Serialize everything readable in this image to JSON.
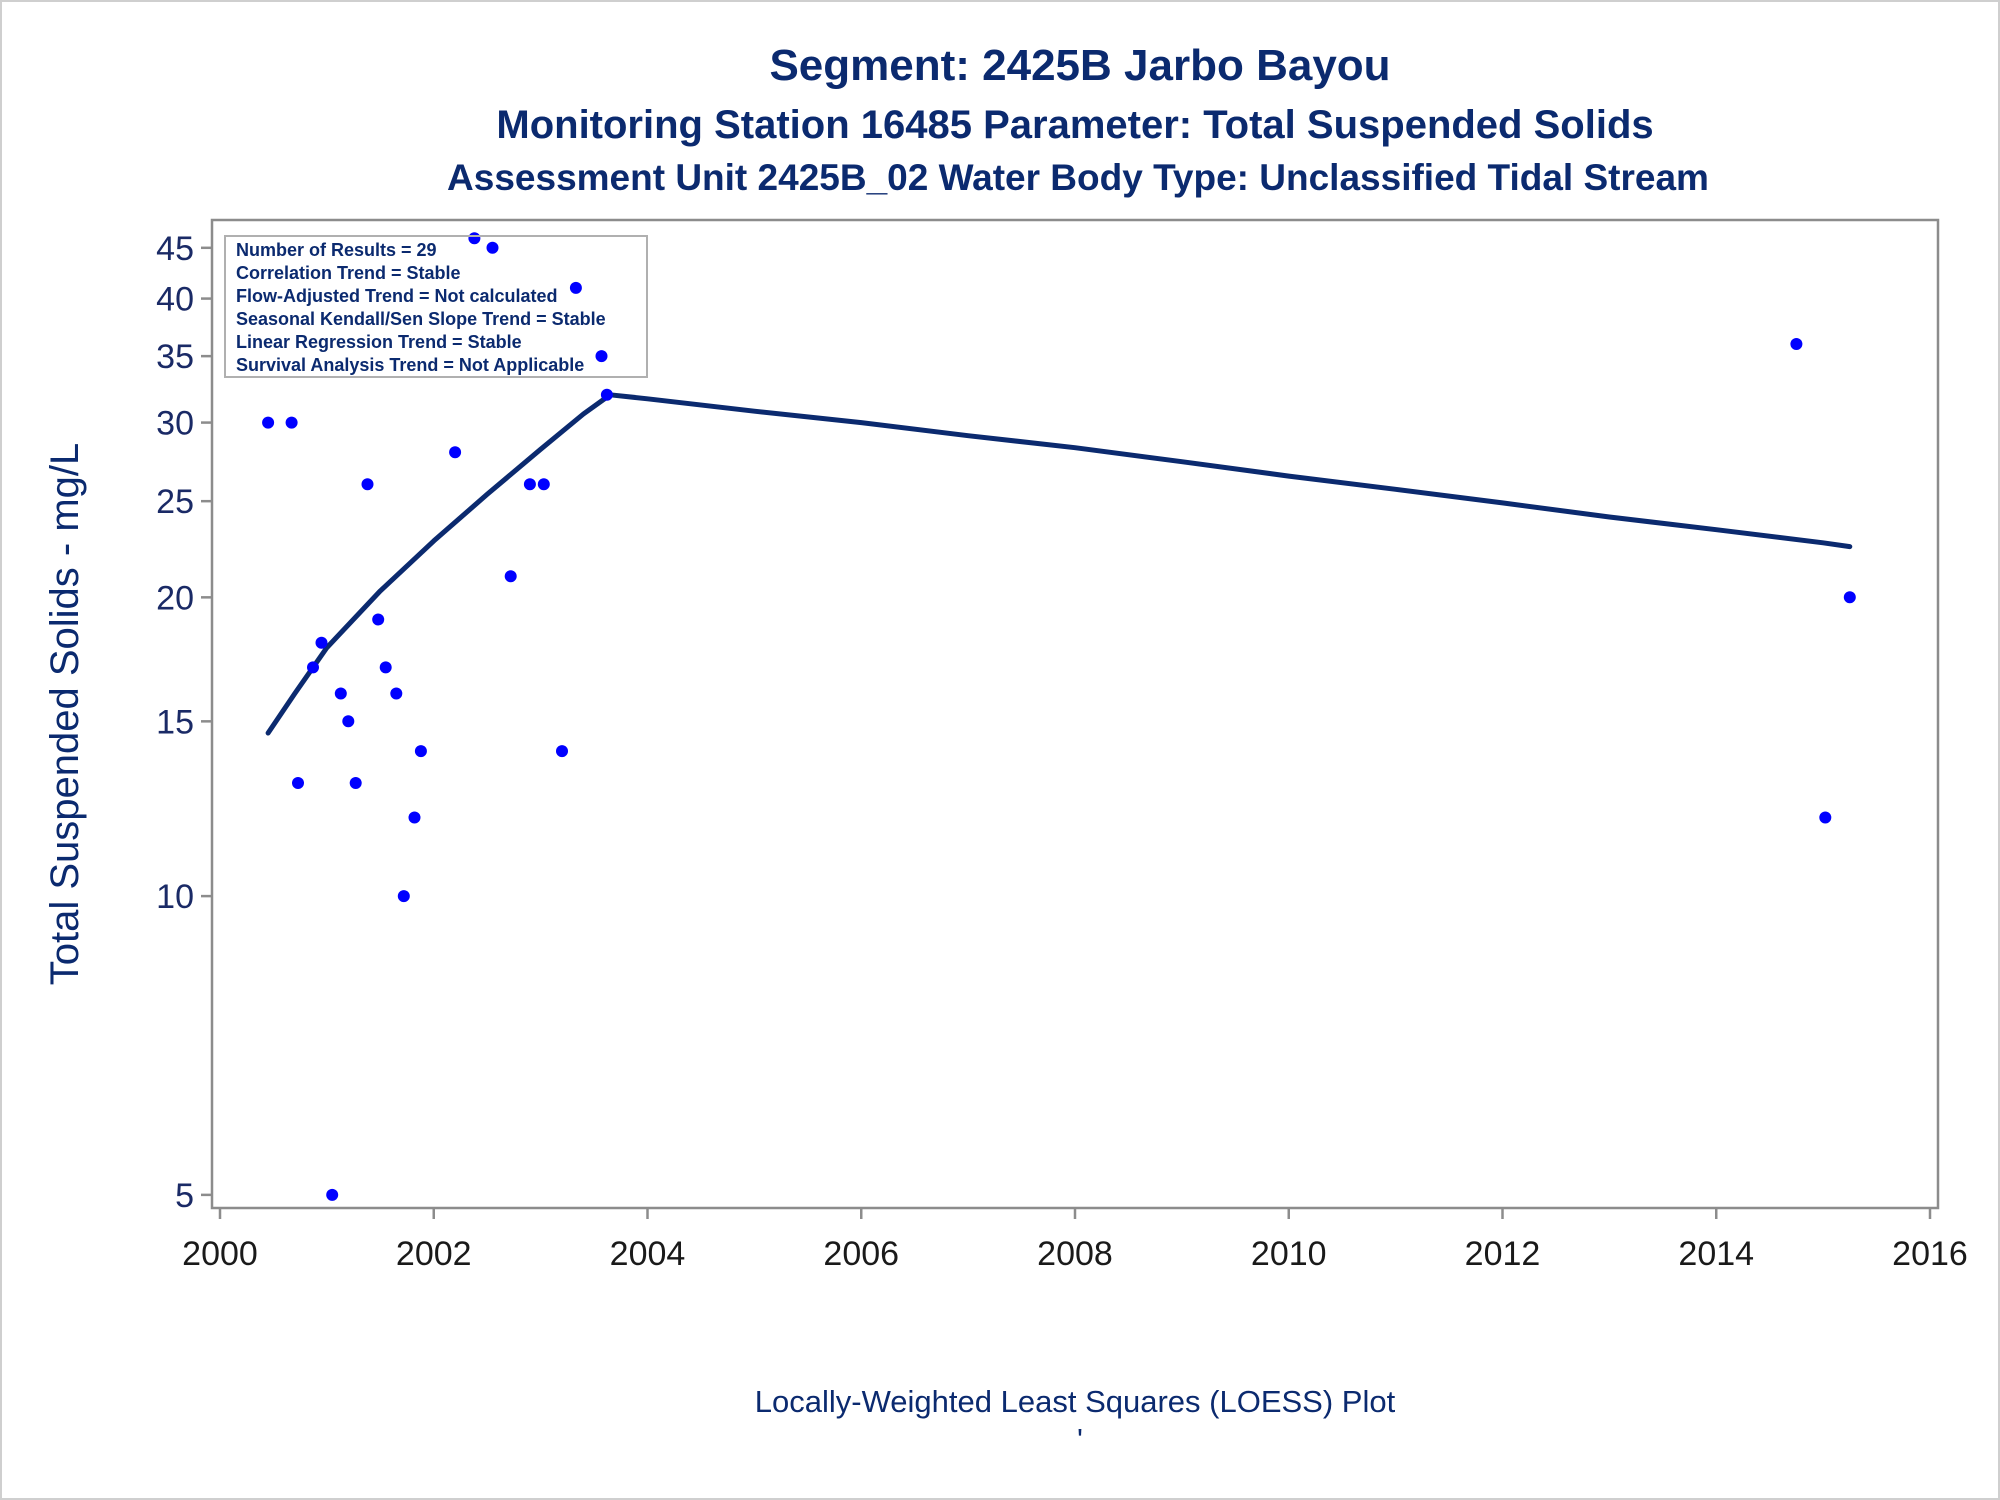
{
  "colors": {
    "title": "#0b2a6f",
    "axis": "#8c8c8c",
    "points": "#0000ff",
    "loess_line": "#0b2a6f",
    "inset_border": "#b0b0b0"
  },
  "chart_data": {
    "type": "scatter",
    "title": "Segment: 2425B  Jarbo Bayou",
    "subtitle": "Monitoring Station 16485 Parameter: Total Suspended Solids",
    "subtitle2": "Assessment Unit 2425B_02   Water Body Type: Unclassified Tidal Stream",
    "ylabel": "Total Suspended Solids - mg/L",
    "xlabel": "",
    "footnote": "Locally-Weighted Least Squares (LOESS) Plot",
    "footnote_mark": "'",
    "x_scale": "linear",
    "y_scale": "log",
    "xlim": [
      2000,
      2016
    ],
    "ylim": [
      4.85,
      48
    ],
    "x_ticks": [
      2000,
      2002,
      2004,
      2006,
      2008,
      2010,
      2012,
      2014,
      2016
    ],
    "y_ticks": [
      5,
      10,
      15,
      20,
      25,
      30,
      35,
      40,
      45
    ],
    "grid": false,
    "legend_position": "top-left",
    "inset_text": [
      "Number of Results = 29",
      "Correlation Trend = Stable",
      "Flow-Adjusted Trend = Not calculated",
      "Seasonal Kendall/Sen Slope Trend = Stable",
      "Linear Regression Trend = Stable",
      "Survival Analysis Trend = Not Applicable"
    ],
    "points": [
      {
        "x": 2000.45,
        "y": 30
      },
      {
        "x": 2000.67,
        "y": 30
      },
      {
        "x": 2000.73,
        "y": 13
      },
      {
        "x": 2000.87,
        "y": 17
      },
      {
        "x": 2000.95,
        "y": 18
      },
      {
        "x": 2001.05,
        "y": 5
      },
      {
        "x": 2001.13,
        "y": 16
      },
      {
        "x": 2001.2,
        "y": 15
      },
      {
        "x": 2001.27,
        "y": 13
      },
      {
        "x": 2001.38,
        "y": 26
      },
      {
        "x": 2001.48,
        "y": 19
      },
      {
        "x": 2001.55,
        "y": 17
      },
      {
        "x": 2001.65,
        "y": 16
      },
      {
        "x": 2001.72,
        "y": 10
      },
      {
        "x": 2001.82,
        "y": 12
      },
      {
        "x": 2001.88,
        "y": 14
      },
      {
        "x": 2002.2,
        "y": 28
      },
      {
        "x": 2002.38,
        "y": 46
      },
      {
        "x": 2002.55,
        "y": 45
      },
      {
        "x": 2002.72,
        "y": 21
      },
      {
        "x": 2002.9,
        "y": 26
      },
      {
        "x": 2003.03,
        "y": 26
      },
      {
        "x": 2003.2,
        "y": 14
      },
      {
        "x": 2003.33,
        "y": 41
      },
      {
        "x": 2003.57,
        "y": 35
      },
      {
        "x": 2003.62,
        "y": 32
      },
      {
        "x": 2014.75,
        "y": 36
      },
      {
        "x": 2015.02,
        "y": 12
      },
      {
        "x": 2015.25,
        "y": 20
      }
    ],
    "loess": [
      {
        "x": 2000.45,
        "y": 14.6
      },
      {
        "x": 2000.7,
        "y": 16.0
      },
      {
        "x": 2001.0,
        "y": 17.8
      },
      {
        "x": 2001.5,
        "y": 20.3
      },
      {
        "x": 2002.0,
        "y": 22.8
      },
      {
        "x": 2002.5,
        "y": 25.4
      },
      {
        "x": 2003.0,
        "y": 28.2
      },
      {
        "x": 2003.4,
        "y": 30.6
      },
      {
        "x": 2003.65,
        "y": 32.0
      },
      {
        "x": 2004.0,
        "y": 31.7
      },
      {
        "x": 2005.0,
        "y": 30.8
      },
      {
        "x": 2006.0,
        "y": 30.0
      },
      {
        "x": 2007.0,
        "y": 29.1
      },
      {
        "x": 2008.0,
        "y": 28.3
      },
      {
        "x": 2009.0,
        "y": 27.4
      },
      {
        "x": 2010.0,
        "y": 26.5
      },
      {
        "x": 2011.0,
        "y": 25.7
      },
      {
        "x": 2012.0,
        "y": 24.9
      },
      {
        "x": 2013.0,
        "y": 24.1
      },
      {
        "x": 2014.0,
        "y": 23.4
      },
      {
        "x": 2015.0,
        "y": 22.7
      },
      {
        "x": 2015.25,
        "y": 22.5
      }
    ]
  }
}
